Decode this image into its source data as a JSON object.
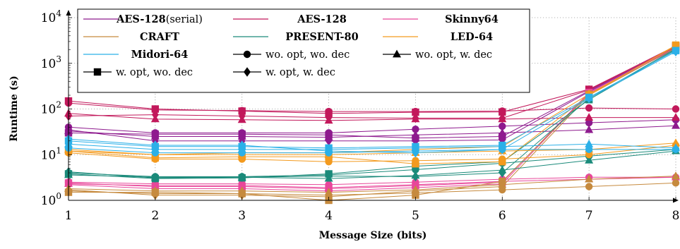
{
  "chart_data": {
    "type": "line",
    "xlabel": "Message Size (bits)",
    "ylabel": "Runtime (s)",
    "yscale": "log",
    "xlim": [
      1,
      8
    ],
    "ylim": [
      1,
      10000
    ],
    "x": [
      1,
      2,
      3,
      4,
      5,
      6,
      7,
      8
    ],
    "x_ticks": [
      "1",
      "2",
      "3",
      "4",
      "5",
      "6",
      "7",
      "8"
    ],
    "y_ticks": [
      {
        "base": "10",
        "exp": "0"
      },
      {
        "base": "10",
        "exp": "1"
      },
      {
        "base": "10",
        "exp": "2"
      },
      {
        "base": "10",
        "exp": "3"
      },
      {
        "base": "10",
        "exp": "4"
      }
    ],
    "grid": true,
    "legend_position": "top",
    "ciphers": [
      {
        "name": "AES-128",
        "note": "(serial)",
        "color": "#8e1a8e"
      },
      {
        "name": "AES-128",
        "note": "",
        "color": "#c2185b"
      },
      {
        "name": "Skinny64",
        "note": "",
        "color": "#e8479a"
      },
      {
        "name": "CRAFT",
        "note": "",
        "color": "#c68a3e"
      },
      {
        "name": "PRESENT-80",
        "note": "",
        "color": "#1a8a7a"
      },
      {
        "name": "LED-64",
        "note": "",
        "color": "#f39a1e"
      },
      {
        "name": "Midori-64",
        "note": "",
        "color": "#2bb0e8"
      }
    ],
    "configs": [
      {
        "name": "wo. opt, wo. dec",
        "marker": "circle"
      },
      {
        "name": "wo. opt, w. dec",
        "marker": "triangle"
      },
      {
        "name": "w. opt, wo. dec",
        "marker": "square"
      },
      {
        "name": "w. opt, w. dec",
        "marker": "diamond"
      }
    ],
    "series": [
      {
        "cipher": 0,
        "config": 0,
        "values": [
          40,
          30,
          30,
          30,
          36,
          42,
          50,
          58
        ]
      },
      {
        "cipher": 0,
        "config": 1,
        "values": [
          33,
          25,
          25,
          24,
          27,
          30,
          35,
          43
        ]
      },
      {
        "cipher": 0,
        "config": 2,
        "values": [
          30,
          28,
          28,
          27,
          23,
          25,
          250,
          2300
        ]
      },
      {
        "cipher": 0,
        "config": 3,
        "values": [
          35,
          20,
          20,
          20,
          20,
          21,
          240,
          2200
        ]
      },
      {
        "cipher": 1,
        "config": 0,
        "values": [
          135,
          95,
          92,
          88,
          88,
          90,
          105,
          100
        ]
      },
      {
        "cipher": 1,
        "config": 1,
        "values": [
          80,
          60,
          58,
          56,
          60,
          60,
          65,
          65
        ]
      },
      {
        "cipher": 1,
        "config": 2,
        "values": [
          150,
          100,
          90,
          80,
          85,
          86,
          270,
          2400
        ]
      },
      {
        "cipher": 1,
        "config": 3,
        "values": [
          70,
          75,
          70,
          65,
          63,
          63,
          260,
          2300
        ]
      },
      {
        "cipher": 2,
        "config": 0,
        "values": [
          2.5,
          2.3,
          2.3,
          2.2,
          2.5,
          2.9,
          3.2,
          3.2
        ]
      },
      {
        "cipher": 2,
        "config": 1,
        "values": [
          2.3,
          2.1,
          2.1,
          1.9,
          2.2,
          2.6,
          2.9,
          3.2
        ]
      },
      {
        "cipher": 2,
        "config": 2,
        "values": [
          2.4,
          2.0,
          2.0,
          1.8,
          2.1,
          2.5,
          230,
          2200
        ]
      },
      {
        "cipher": 2,
        "config": 3,
        "values": [
          2.2,
          1.8,
          1.8,
          1.6,
          1.9,
          2.3,
          220,
          2100
        ]
      },
      {
        "cipher": 3,
        "config": 0,
        "values": [
          1.6,
          1.4,
          1.4,
          1.3,
          1.45,
          1.7,
          2.0,
          2.4
        ]
      },
      {
        "cipher": 3,
        "config": 1,
        "values": [
          1.8,
          1.6,
          1.6,
          1.5,
          1.7,
          2.2,
          2.9,
          3.4
        ]
      },
      {
        "cipher": 3,
        "config": 2,
        "values": [
          1.5,
          1.5,
          1.4,
          1.0,
          1.3,
          2.6,
          210,
          2400
        ]
      },
      {
        "cipher": 3,
        "config": 3,
        "values": [
          1.7,
          1.3,
          1.3,
          1.2,
          1.6,
          2.0,
          200,
          2200
        ]
      },
      {
        "cipher": 4,
        "config": 0,
        "values": [
          4.0,
          3.3,
          3.3,
          3.6,
          4.7,
          6.5,
          9.3,
          13
        ]
      },
      {
        "cipher": 4,
        "config": 1,
        "values": [
          3.6,
          3.2,
          3.2,
          3.0,
          3.5,
          4.6,
          7.5,
          12
        ]
      },
      {
        "cipher": 4,
        "config": 2,
        "values": [
          3.8,
          3.0,
          3.1,
          3.8,
          5.6,
          7.0,
          160,
          2000
        ]
      },
      {
        "cipher": 4,
        "config": 3,
        "values": [
          4.2,
          3.1,
          3.2,
          3.4,
          3.3,
          4.0,
          170,
          2100
        ]
      },
      {
        "cipher": 5,
        "config": 0,
        "values": [
          11,
          8.0,
          8.0,
          7.0,
          7.4,
          8.0,
          10,
          16
        ]
      },
      {
        "cipher": 5,
        "config": 1,
        "values": [
          13,
          10,
          10,
          10,
          11,
          12,
          13,
          18
        ]
      },
      {
        "cipher": 5,
        "config": 2,
        "values": [
          12,
          8.5,
          9.0,
          9.0,
          6.3,
          7.0,
          200,
          2500
        ]
      },
      {
        "cipher": 5,
        "config": 3,
        "values": [
          12,
          10,
          11,
          11,
          13,
          15,
          210,
          2400
        ]
      },
      {
        "cipher": 6,
        "config": 0,
        "values": [
          14,
          11,
          11,
          11,
          12,
          13,
          13,
          13
        ]
      },
      {
        "cipher": 6,
        "config": 1,
        "values": [
          17,
          13,
          13,
          13,
          14,
          15,
          17,
          14
        ]
      },
      {
        "cipher": 6,
        "config": 2,
        "values": [
          20,
          15,
          15,
          14,
          15,
          16,
          180,
          1900
        ]
      },
      {
        "cipher": 6,
        "config": 3,
        "values": [
          22,
          16,
          16,
          12,
          11,
          13,
          170,
          1800
        ]
      }
    ]
  }
}
